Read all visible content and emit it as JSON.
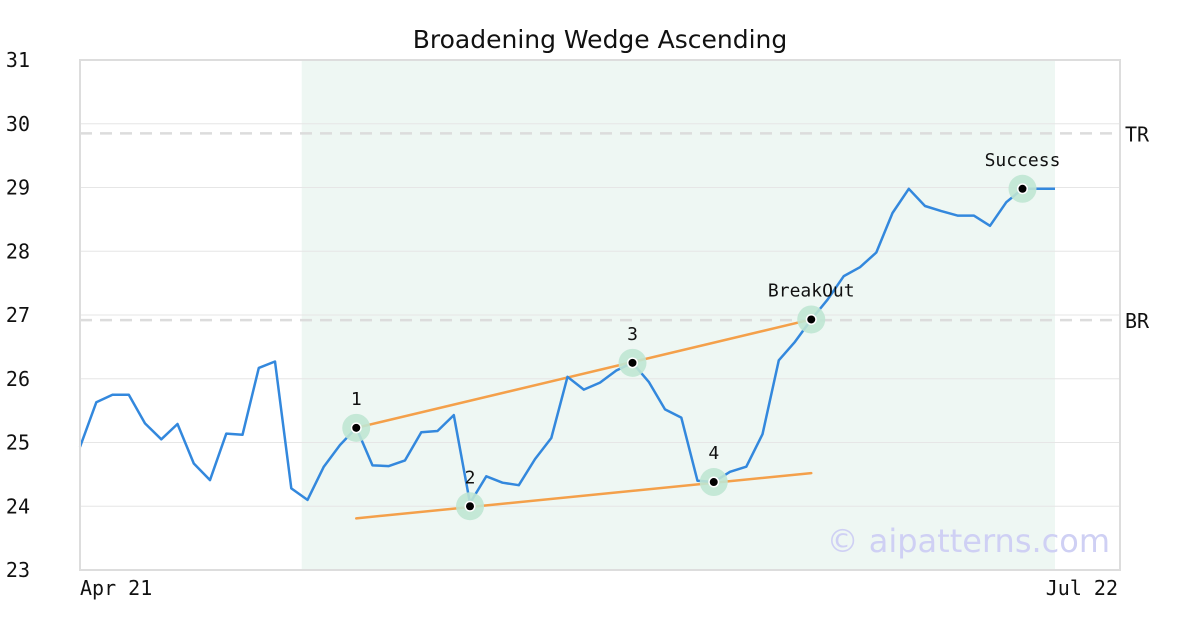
{
  "chart_data": {
    "type": "line",
    "title": "Broadening Wedge Ascending",
    "xlabel": "",
    "ylabel": "",
    "x_tick_labels": [
      "Apr 21",
      "Jul 22"
    ],
    "y_ticks": [
      23,
      24,
      25,
      26,
      27,
      28,
      29,
      30,
      31
    ],
    "ylim": [
      23,
      31
    ],
    "grid": "horizontal",
    "series": [
      {
        "color": "#3388dd",
        "values": [
          24.93,
          25.63,
          25.75,
          25.75,
          25.3,
          25.05,
          25.29,
          24.67,
          24.41,
          25.14,
          25.12,
          26.17,
          26.27,
          24.28,
          24.1,
          24.62,
          24.96,
          25.23,
          24.64,
          24.63,
          24.72,
          25.16,
          25.18,
          25.43,
          24.05,
          24.47,
          24.37,
          24.33,
          24.74,
          25.07,
          26.03,
          25.83,
          25.94,
          26.13,
          26.25,
          25.95,
          25.52,
          25.39,
          24.4,
          24.38,
          24.54,
          24.62,
          25.13,
          26.29,
          26.58,
          26.93,
          27.24,
          27.61,
          27.75,
          27.98,
          28.6,
          28.98,
          28.71,
          28.63,
          28.56,
          28.56,
          28.4,
          28.77,
          28.98,
          28.98,
          28.98
        ]
      }
    ],
    "highlight_range": {
      "start_index": 15,
      "end_index": 60,
      "color": "#eef7f3"
    },
    "reference_lines": [
      {
        "label": "TR",
        "value": 29.85
      },
      {
        "label": "BR",
        "value": 26.92
      }
    ],
    "trend_lines": [
      {
        "color": "#f4a04a",
        "from": {
          "index": 17,
          "value": 25.23
        },
        "to": {
          "index": 45,
          "value": 26.93
        }
      },
      {
        "color": "#f4a04a",
        "from": {
          "index": 17,
          "value": 23.81
        },
        "to": {
          "index": 45,
          "value": 24.52
        }
      }
    ],
    "marked_points": [
      {
        "label": "1",
        "index": 17,
        "value": 25.23
      },
      {
        "label": "2",
        "index": 24,
        "value": 24.0
      },
      {
        "label": "3",
        "index": 34,
        "value": 26.25
      },
      {
        "label": "4",
        "index": 39,
        "value": 24.38
      },
      {
        "label": "BreakOut",
        "index": 45,
        "value": 26.93
      },
      {
        "label": "Success",
        "index": 58,
        "value": 28.98
      }
    ],
    "marker_halo_color": "#bfe6d3"
  },
  "watermark": "© aipatterns.com"
}
